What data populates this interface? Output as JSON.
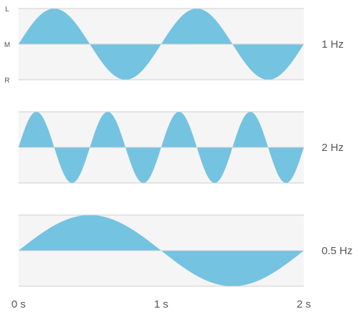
{
  "chart_data": {
    "type": "area",
    "x_unit": "s",
    "xlim": [
      0,
      2
    ],
    "x_ticks": [
      "0 s",
      "1 s",
      "2 s"
    ],
    "y_tick_labels": [
      "L",
      "M",
      "R"
    ],
    "ylim": [
      -1,
      1
    ],
    "grid": true,
    "colors": {
      "fill": "#74c3e1",
      "band": "#f5f5f5",
      "grid": "#cfcfcf"
    },
    "series": [
      {
        "label": "1 Hz",
        "frequency": 1,
        "amplitude": 1
      },
      {
        "label": "2 Hz",
        "frequency": 2,
        "amplitude": 1
      },
      {
        "label": "0.5 Hz",
        "frequency": 0.5,
        "amplitude": 1
      }
    ]
  }
}
